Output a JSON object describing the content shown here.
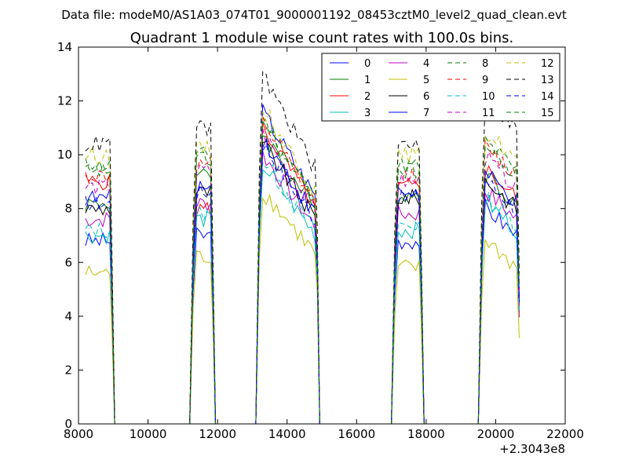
{
  "chart_data": {
    "type": "line",
    "suptitle": "Data file: modeM0/AS1A03_074T01_9000001192_08453cztM0_level2_quad_clean.evt",
    "title": "Quadrant 1 module wise count rates with 100.0s bins.",
    "xlabel": "",
    "ylabel": "",
    "x_offset_label": "+2.3043e8",
    "xlim": [
      8000,
      22000
    ],
    "ylim": [
      0,
      14
    ],
    "xticks": [
      8000,
      10000,
      12000,
      14000,
      16000,
      18000,
      20000,
      22000
    ],
    "yticks": [
      0,
      2,
      4,
      6,
      8,
      10,
      12,
      14
    ],
    "xtick_labels": [
      "8000",
      "10000",
      "12000",
      "14000",
      "16000",
      "18000",
      "20000",
      "22000"
    ],
    "ytick_labels": [
      "0",
      "2",
      "4",
      "6",
      "8",
      "10",
      "12",
      "14"
    ],
    "grid": false,
    "legend_location": "top-right",
    "segments": [
      {
        "start": 8200,
        "n": 8
      },
      {
        "start": 11300,
        "n": 6
      },
      {
        "start": 13200,
        "n": 17
      },
      {
        "start": 17100,
        "n": 8
      },
      {
        "start": 19600,
        "n": 11
      }
    ],
    "series": [
      {
        "name": "0",
        "color": "#0000ff",
        "dash": false,
        "s1": 6.8,
        "s2": 7.0,
        "s3": 11.8,
        "s4": 6.8,
        "s5": 7.8,
        "end": 7.5
      },
      {
        "name": "1",
        "color": "#008000",
        "dash": false,
        "s1": 8.2,
        "s2": 9.2,
        "s3": 11.0,
        "s4": 8.5,
        "s5": 9.0,
        "end": 8.0
      },
      {
        "name": "2",
        "color": "#ff0000",
        "dash": false,
        "s1": 9.0,
        "s2": 8.0,
        "s3": 11.2,
        "s4": 8.8,
        "s5": 9.2,
        "end": 8.2
      },
      {
        "name": "3",
        "color": "#00bfbf",
        "dash": false,
        "s1": 7.0,
        "s2": 7.6,
        "s3": 9.8,
        "s4": 7.2,
        "s5": 8.0,
        "end": 7.5
      },
      {
        "name": "4",
        "color": "#bf00bf",
        "dash": false,
        "s1": 7.6,
        "s2": 8.2,
        "s3": 10.2,
        "s4": 7.8,
        "s5": 8.4,
        "end": 7.2
      },
      {
        "name": "5",
        "color": "#bfbf00",
        "dash": false,
        "s1": 5.6,
        "s2": 6.2,
        "s3": 8.8,
        "s4": 5.8,
        "s5": 6.6,
        "end": 5.8
      },
      {
        "name": "6",
        "color": "#000000",
        "dash": false,
        "s1": 8.0,
        "s2": 8.6,
        "s3": 10.6,
        "s4": 8.4,
        "s5": 8.8,
        "end": 8.2
      },
      {
        "name": "7",
        "color": "#0000ff",
        "dash": false,
        "s1": 8.4,
        "s2": 8.8,
        "s3": 10.8,
        "s4": 8.6,
        "s5": 9.0,
        "end": 8.4
      },
      {
        "name": "8",
        "color": "#008000",
        "dash": true,
        "s1": 9.6,
        "s2": 10.0,
        "s3": 11.6,
        "s4": 9.6,
        "s5": 10.2,
        "end": 9.2
      },
      {
        "name": "9",
        "color": "#ff0000",
        "dash": true,
        "s1": 9.2,
        "s2": 9.6,
        "s3": 11.4,
        "s4": 9.2,
        "s5": 10.0,
        "end": 9.0
      },
      {
        "name": "10",
        "color": "#00bfbf",
        "dash": true,
        "s1": 7.2,
        "s2": 7.8,
        "s3": 10.0,
        "s4": 7.4,
        "s5": 8.2,
        "end": 7.6
      },
      {
        "name": "11",
        "color": "#bf00bf",
        "dash": true,
        "s1": 8.8,
        "s2": 9.4,
        "s3": 11.0,
        "s4": 9.0,
        "s5": 9.6,
        "end": 8.8
      },
      {
        "name": "12",
        "color": "#bfbf00",
        "dash": true,
        "s1": 10.0,
        "s2": 10.2,
        "s3": 12.0,
        "s4": 10.0,
        "s5": 10.6,
        "end": 9.6
      },
      {
        "name": "13",
        "color": "#000000",
        "dash": true,
        "s1": 10.4,
        "s2": 11.0,
        "s3": 13.2,
        "s4": 10.4,
        "s5": 11.8,
        "end": 10.2
      },
      {
        "name": "14",
        "color": "#0000ff",
        "dash": true,
        "s1": 8.2,
        "s2": 8.6,
        "s3": 10.6,
        "s4": 8.4,
        "s5": 8.8,
        "end": 8.2
      },
      {
        "name": "15",
        "color": "#008000",
        "dash": true,
        "s1": 9.4,
        "s2": 9.8,
        "s3": 11.4,
        "s4": 9.4,
        "s5": 10.0,
        "end": 9.2
      }
    ]
  }
}
